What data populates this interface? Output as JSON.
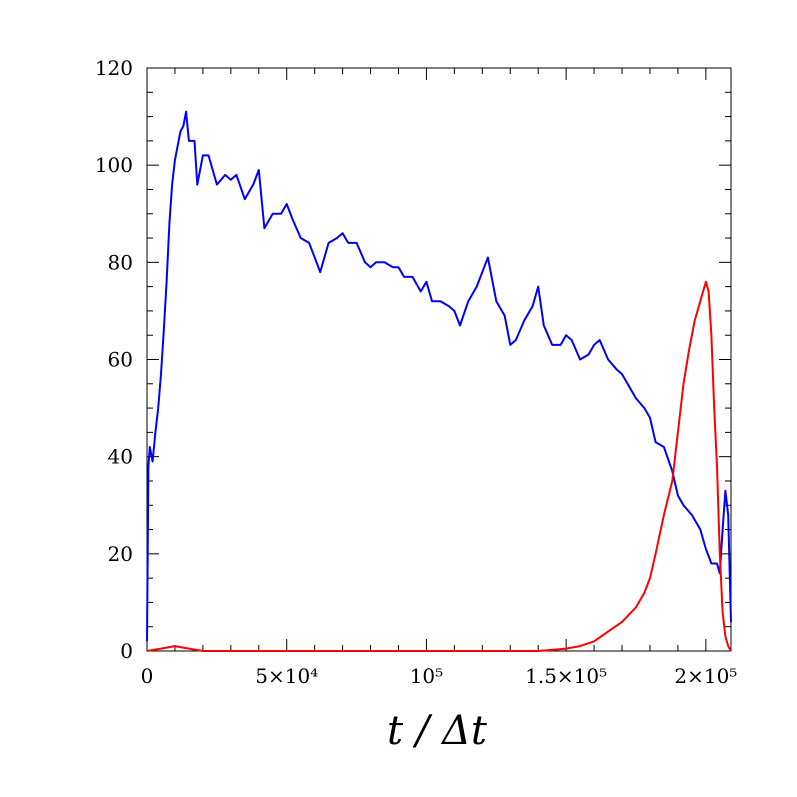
{
  "chart_data": {
    "type": "line",
    "title": "",
    "xlabel": "t / Δt",
    "ylabel": "",
    "xlim": [
      0,
      209000
    ],
    "ylim": [
      0,
      120
    ],
    "grid": false,
    "legend": "none",
    "x_ticks": [
      {
        "value": 0,
        "label": "0"
      },
      {
        "value": 50000,
        "label": "5×10⁴"
      },
      {
        "value": 100000,
        "label": "10⁵"
      },
      {
        "value": 150000,
        "label": "1.5×10⁵"
      },
      {
        "value": 200000,
        "label": "2×10⁵"
      }
    ],
    "y_ticks": [
      {
        "value": 0,
        "label": "0"
      },
      {
        "value": 20,
        "label": "20"
      },
      {
        "value": 40,
        "label": "40"
      },
      {
        "value": 60,
        "label": "60"
      },
      {
        "value": 80,
        "label": "80"
      },
      {
        "value": 100,
        "label": "100"
      },
      {
        "value": 120,
        "label": "120"
      }
    ],
    "series": [
      {
        "color": "#0000ff",
        "x": [
          0,
          500,
          1000,
          2000,
          3000,
          4000,
          5000,
          6000,
          7000,
          8000,
          9000,
          10000,
          11000,
          12000,
          13000,
          14000,
          15000,
          17000,
          18000,
          19000,
          20000,
          22000,
          25000,
          28000,
          30000,
          32000,
          35000,
          38000,
          40000,
          42000,
          45000,
          48000,
          50000,
          52000,
          55000,
          58000,
          60000,
          62000,
          65000,
          68000,
          70000,
          72000,
          75000,
          78000,
          80000,
          82000,
          85000,
          88000,
          90000,
          92000,
          95000,
          98000,
          100000,
          102000,
          105000,
          108000,
          110000,
          112000,
          115000,
          118000,
          120000,
          122000,
          125000,
          128000,
          130000,
          132000,
          135000,
          138000,
          140000,
          142000,
          145000,
          148000,
          150000,
          152000,
          155000,
          158000,
          160000,
          162000,
          165000,
          168000,
          170000,
          172000,
          175000,
          178000,
          180000,
          182000,
          185000,
          188000,
          190000,
          192000,
          195000,
          198000,
          200000,
          202000,
          204000,
          205000,
          206000,
          207000,
          208000,
          209000
        ],
        "y": [
          2,
          38,
          42,
          39,
          45,
          50,
          57,
          66,
          76,
          88,
          96,
          101,
          104,
          107,
          108,
          111,
          105,
          105,
          96,
          99,
          102,
          102,
          96,
          98,
          97,
          98,
          93,
          96,
          99,
          87,
          90,
          90,
          92,
          89,
          85,
          84,
          81,
          78,
          84,
          85,
          86,
          84,
          84,
          80,
          79,
          80,
          80,
          79,
          79,
          77,
          77,
          74,
          76,
          72,
          72,
          71,
          70,
          67,
          72,
          75,
          78,
          81,
          72,
          69,
          63,
          64,
          68,
          71,
          75,
          67,
          63,
          63,
          65,
          64,
          60,
          61,
          63,
          64,
          60,
          58,
          57,
          55,
          52,
          50,
          48,
          43,
          42,
          37,
          32,
          30,
          28,
          25,
          21,
          18,
          18,
          16,
          25,
          33,
          28,
          6
        ]
      },
      {
        "color": "#ff0000",
        "x": [
          0,
          5000,
          10000,
          15000,
          20000,
          30000,
          50000,
          80000,
          100000,
          120000,
          140000,
          150000,
          155000,
          160000,
          165000,
          170000,
          175000,
          178000,
          180000,
          182000,
          185000,
          188000,
          190000,
          192000,
          194000,
          196000,
          198000,
          200000,
          201000,
          202000,
          203000,
          204000,
          205000,
          206000,
          207000,
          208000,
          209000
        ],
        "y": [
          0,
          0.5,
          1,
          0.5,
          0,
          0,
          0,
          0,
          0,
          0,
          0,
          0.5,
          1,
          2,
          4,
          6,
          9,
          12,
          15,
          20,
          28,
          35,
          45,
          55,
          62,
          68,
          72,
          76,
          74,
          65,
          50,
          38,
          20,
          8,
          3,
          1,
          0
        ]
      }
    ]
  }
}
